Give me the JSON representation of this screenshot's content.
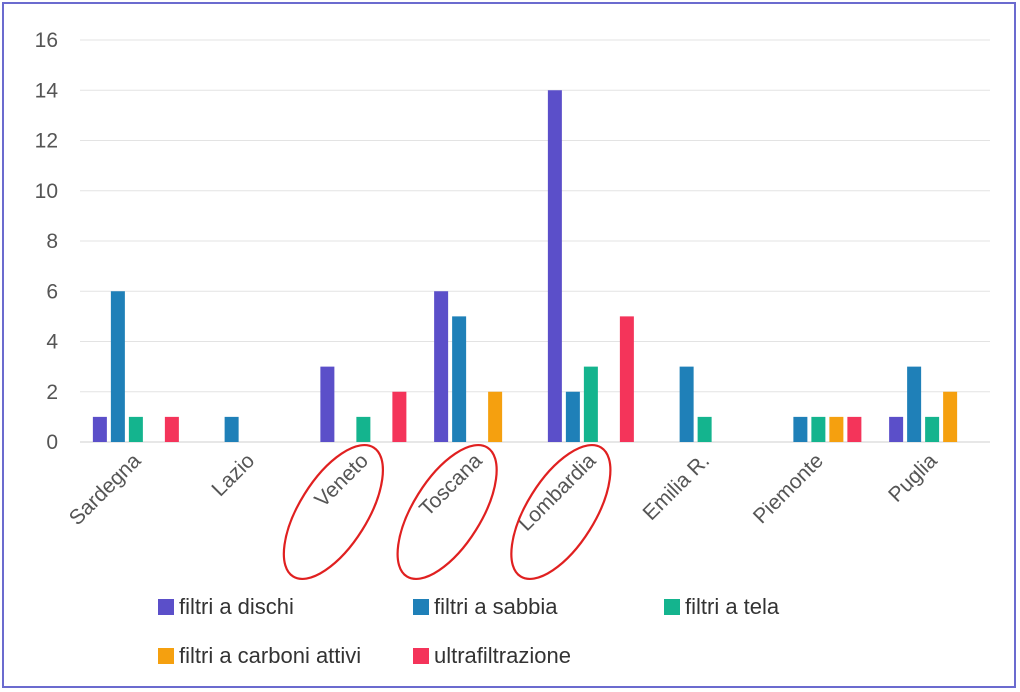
{
  "chart_data": {
    "type": "bar",
    "categories": [
      "Sardegna",
      "Lazio",
      "Veneto",
      "Toscana",
      "Lombardia",
      "Emilia R.",
      "Piemonte",
      "Puglia"
    ],
    "series": [
      {
        "name": "filtri a dischi",
        "color": "#5b4fc9",
        "values": [
          1,
          0,
          3,
          6,
          14,
          0,
          0,
          1
        ]
      },
      {
        "name": "filtri a sabbia",
        "color": "#1f80b8",
        "values": [
          6,
          1,
          0,
          5,
          2,
          3,
          1,
          3
        ]
      },
      {
        "name": "filtri a tela",
        "color": "#14b48e",
        "values": [
          1,
          0,
          1,
          0,
          3,
          1,
          1,
          1
        ]
      },
      {
        "name": "filtri a carboni attivi",
        "color": "#f5a00f",
        "values": [
          0,
          0,
          0,
          2,
          0,
          0,
          1,
          2
        ]
      },
      {
        "name": "ultrafiltrazione",
        "color": "#f4345a",
        "values": [
          1,
          0,
          2,
          0,
          5,
          0,
          1,
          0
        ]
      }
    ],
    "ylim": [
      0,
      16
    ],
    "yticks": [
      0,
      2,
      4,
      6,
      8,
      10,
      12,
      14,
      16
    ],
    "grid": true,
    "legend_position": "bottom",
    "highlighted_categories": [
      "Veneto",
      "Toscana",
      "Lombardia"
    ],
    "highlight_color": "#e02020",
    "frame_color": "#6b6bcf"
  }
}
